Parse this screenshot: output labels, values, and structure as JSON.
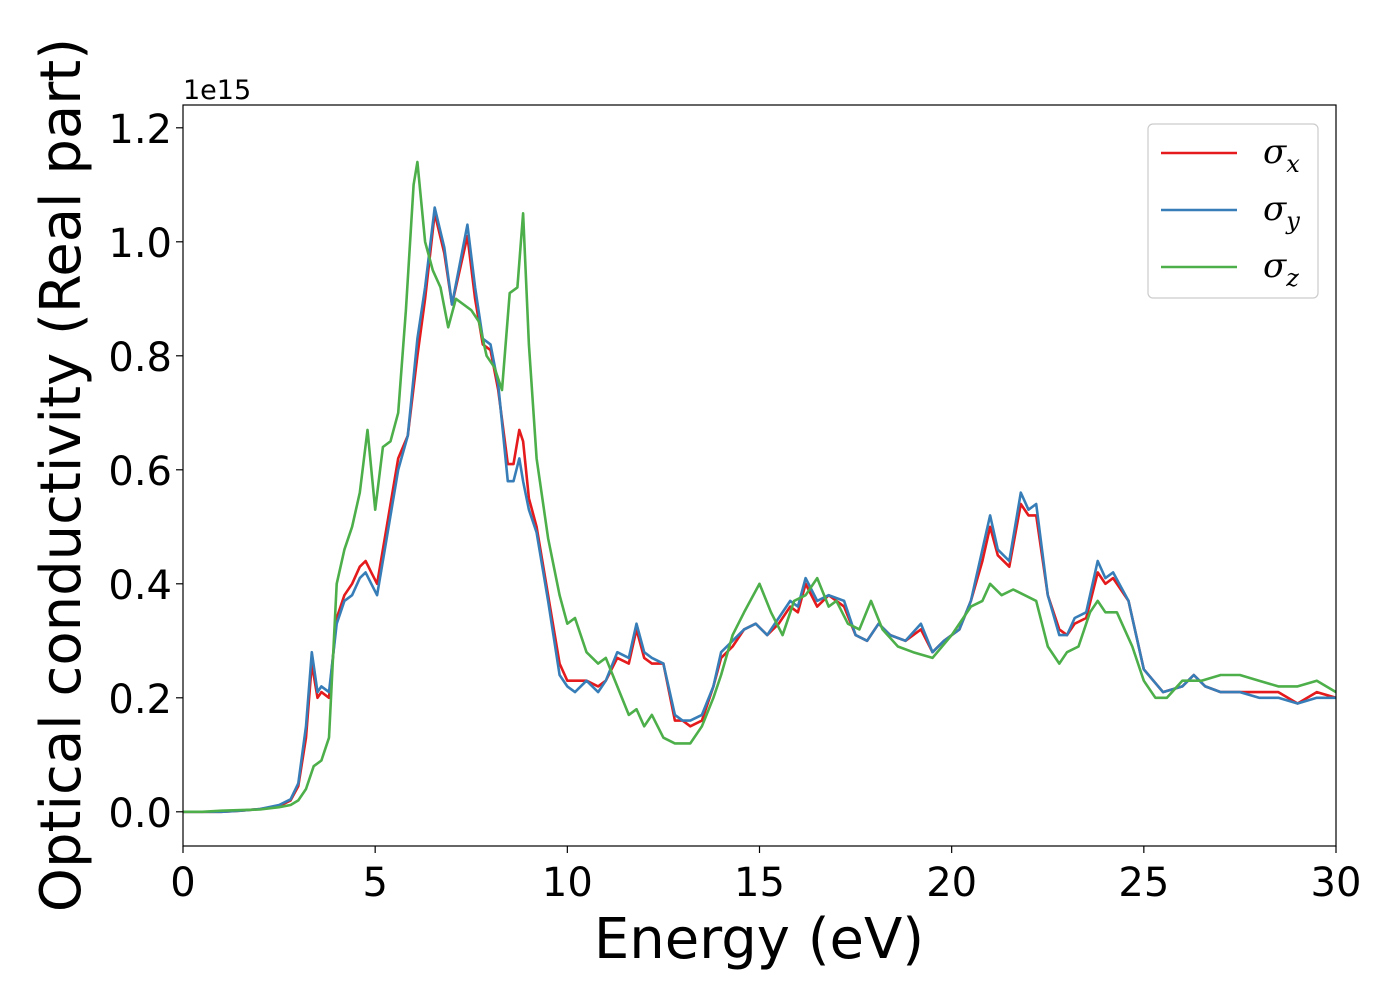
{
  "chart_data": {
    "type": "line",
    "xlabel": "Energy (eV)",
    "ylabel": "Optical conductivity (Real part)",
    "y_offset_label": "1e15",
    "xlim": [
      0,
      30
    ],
    "ylim": [
      -0.06,
      1.24
    ],
    "x_ticks": [
      0,
      5,
      10,
      15,
      20,
      25,
      30
    ],
    "x_tick_labels": [
      "0",
      "5",
      "10",
      "15",
      "20",
      "25",
      "30"
    ],
    "y_ticks": [
      0.0,
      0.2,
      0.4,
      0.6,
      0.8,
      1.0,
      1.2
    ],
    "y_tick_labels": [
      "0.0",
      "0.2",
      "0.4",
      "0.6",
      "0.8",
      "1.0",
      "1.2"
    ],
    "grid": false,
    "legend_position": "top-right",
    "series": [
      {
        "name": "σx",
        "symbol": "σ",
        "subscript": "x",
        "color": "#e41a1c",
        "x": [
          0,
          0.5,
          1,
          1.5,
          2,
          2.5,
          2.8,
          3.0,
          3.2,
          3.35,
          3.5,
          3.6,
          3.8,
          4.0,
          4.2,
          4.4,
          4.6,
          4.75,
          4.9,
          5.05,
          5.3,
          5.6,
          5.85,
          6.1,
          6.3,
          6.55,
          6.8,
          7.0,
          7.2,
          7.4,
          7.6,
          7.8,
          8.0,
          8.2,
          8.45,
          8.6,
          8.75,
          8.85,
          9.0,
          9.2,
          9.5,
          9.8,
          10.0,
          10.2,
          10.5,
          10.8,
          11.0,
          11.3,
          11.6,
          11.8,
          12.0,
          12.2,
          12.5,
          12.8,
          13.0,
          13.2,
          13.5,
          13.8,
          14.0,
          14.3,
          14.6,
          14.9,
          15.2,
          15.5,
          15.8,
          16.0,
          16.2,
          16.5,
          16.8,
          17.2,
          17.5,
          17.8,
          18.1,
          18.4,
          18.8,
          19.2,
          19.5,
          19.8,
          20.2,
          20.5,
          20.8,
          21.0,
          21.2,
          21.5,
          21.8,
          22.0,
          22.2,
          22.5,
          22.8,
          23.0,
          23.2,
          23.5,
          23.8,
          24.0,
          24.2,
          24.6,
          25.0,
          25.5,
          26.0,
          26.3,
          26.6,
          27.0,
          27.5,
          28.0,
          28.5,
          29.0,
          29.5,
          30.0
        ],
        "y": [
          0.0,
          0.0,
          0.0,
          0.002,
          0.005,
          0.01,
          0.02,
          0.045,
          0.13,
          0.26,
          0.2,
          0.21,
          0.2,
          0.34,
          0.38,
          0.4,
          0.43,
          0.44,
          0.42,
          0.4,
          0.5,
          0.62,
          0.66,
          0.8,
          0.9,
          1.05,
          0.98,
          0.89,
          0.95,
          1.01,
          0.9,
          0.82,
          0.81,
          0.74,
          0.61,
          0.61,
          0.67,
          0.65,
          0.55,
          0.5,
          0.38,
          0.26,
          0.23,
          0.23,
          0.23,
          0.22,
          0.23,
          0.27,
          0.26,
          0.32,
          0.27,
          0.26,
          0.26,
          0.16,
          0.16,
          0.15,
          0.16,
          0.22,
          0.27,
          0.29,
          0.32,
          0.33,
          0.31,
          0.33,
          0.36,
          0.35,
          0.4,
          0.36,
          0.38,
          0.36,
          0.31,
          0.3,
          0.33,
          0.31,
          0.3,
          0.32,
          0.28,
          0.3,
          0.32,
          0.37,
          0.44,
          0.5,
          0.45,
          0.43,
          0.54,
          0.52,
          0.52,
          0.38,
          0.32,
          0.31,
          0.33,
          0.34,
          0.42,
          0.4,
          0.41,
          0.37,
          0.25,
          0.21,
          0.22,
          0.24,
          0.22,
          0.21,
          0.21,
          0.21,
          0.21,
          0.19,
          0.21,
          0.2
        ]
      },
      {
        "name": "σy",
        "symbol": "σ",
        "subscript": "y",
        "color": "#377eb8",
        "x": [
          0,
          0.5,
          1,
          1.5,
          2,
          2.5,
          2.8,
          3.0,
          3.2,
          3.35,
          3.5,
          3.6,
          3.8,
          4.0,
          4.2,
          4.4,
          4.6,
          4.75,
          4.9,
          5.05,
          5.3,
          5.6,
          5.85,
          6.1,
          6.3,
          6.55,
          6.8,
          7.0,
          7.2,
          7.4,
          7.6,
          7.8,
          8.0,
          8.2,
          8.45,
          8.6,
          8.75,
          8.85,
          9.0,
          9.2,
          9.5,
          9.8,
          10.0,
          10.2,
          10.5,
          10.8,
          11.0,
          11.3,
          11.6,
          11.8,
          12.0,
          12.2,
          12.5,
          12.8,
          13.0,
          13.2,
          13.5,
          13.8,
          14.0,
          14.3,
          14.6,
          14.9,
          15.2,
          15.5,
          15.8,
          16.0,
          16.2,
          16.5,
          16.8,
          17.2,
          17.5,
          17.8,
          18.1,
          18.4,
          18.8,
          19.2,
          19.5,
          19.8,
          20.2,
          20.5,
          20.8,
          21.0,
          21.2,
          21.5,
          21.8,
          22.0,
          22.2,
          22.5,
          22.8,
          23.0,
          23.2,
          23.5,
          23.8,
          24.0,
          24.2,
          24.6,
          25.0,
          25.5,
          26.0,
          26.3,
          26.6,
          27.0,
          27.5,
          28.0,
          28.5,
          29.0,
          29.5,
          30.0
        ],
        "y": [
          0.0,
          0.0,
          0.0,
          0.002,
          0.005,
          0.012,
          0.022,
          0.05,
          0.15,
          0.28,
          0.21,
          0.22,
          0.21,
          0.33,
          0.37,
          0.38,
          0.41,
          0.42,
          0.4,
          0.38,
          0.48,
          0.6,
          0.66,
          0.83,
          0.92,
          1.06,
          0.99,
          0.89,
          0.96,
          1.03,
          0.92,
          0.83,
          0.82,
          0.75,
          0.58,
          0.58,
          0.62,
          0.58,
          0.53,
          0.49,
          0.37,
          0.24,
          0.22,
          0.21,
          0.23,
          0.21,
          0.23,
          0.28,
          0.27,
          0.33,
          0.28,
          0.27,
          0.26,
          0.17,
          0.16,
          0.16,
          0.17,
          0.22,
          0.28,
          0.3,
          0.32,
          0.33,
          0.31,
          0.34,
          0.37,
          0.36,
          0.41,
          0.37,
          0.38,
          0.37,
          0.31,
          0.3,
          0.33,
          0.31,
          0.3,
          0.33,
          0.28,
          0.3,
          0.32,
          0.37,
          0.46,
          0.52,
          0.46,
          0.44,
          0.56,
          0.53,
          0.54,
          0.38,
          0.31,
          0.31,
          0.34,
          0.35,
          0.44,
          0.41,
          0.42,
          0.37,
          0.25,
          0.21,
          0.22,
          0.24,
          0.22,
          0.21,
          0.21,
          0.2,
          0.2,
          0.19,
          0.2,
          0.2
        ]
      },
      {
        "name": "σz",
        "symbol": "σ",
        "subscript": "z",
        "color": "#4daf4a",
        "x": [
          0,
          0.5,
          1,
          1.5,
          2,
          2.5,
          2.8,
          3.0,
          3.2,
          3.4,
          3.6,
          3.8,
          4.0,
          4.2,
          4.4,
          4.6,
          4.8,
          5.0,
          5.2,
          5.4,
          5.6,
          5.8,
          6.0,
          6.1,
          6.3,
          6.5,
          6.7,
          6.9,
          7.1,
          7.3,
          7.5,
          7.7,
          7.9,
          8.1,
          8.3,
          8.5,
          8.7,
          8.85,
          9.0,
          9.2,
          9.5,
          9.8,
          10.0,
          10.2,
          10.5,
          10.8,
          11.0,
          11.3,
          11.6,
          11.8,
          12.0,
          12.2,
          12.5,
          12.8,
          13.0,
          13.2,
          13.5,
          13.8,
          14.0,
          14.3,
          14.6,
          15.0,
          15.3,
          15.6,
          15.9,
          16.2,
          16.5,
          16.8,
          17.0,
          17.3,
          17.6,
          17.9,
          18.2,
          18.6,
          19.0,
          19.5,
          20.0,
          20.5,
          20.8,
          21.0,
          21.3,
          21.6,
          21.9,
          22.2,
          22.5,
          22.8,
          23.0,
          23.3,
          23.6,
          23.8,
          24.0,
          24.3,
          24.7,
          25.0,
          25.3,
          25.6,
          26.0,
          26.5,
          27.0,
          27.5,
          28.0,
          28.5,
          29.0,
          29.5,
          30.0
        ],
        "y": [
          0.0,
          0.0,
          0.002,
          0.003,
          0.004,
          0.008,
          0.012,
          0.02,
          0.04,
          0.08,
          0.09,
          0.13,
          0.4,
          0.46,
          0.5,
          0.56,
          0.67,
          0.53,
          0.64,
          0.65,
          0.7,
          0.88,
          1.1,
          1.14,
          1.0,
          0.95,
          0.92,
          0.85,
          0.9,
          0.89,
          0.88,
          0.86,
          0.8,
          0.78,
          0.74,
          0.91,
          0.92,
          1.05,
          0.82,
          0.62,
          0.48,
          0.38,
          0.33,
          0.34,
          0.28,
          0.26,
          0.27,
          0.22,
          0.17,
          0.18,
          0.15,
          0.17,
          0.13,
          0.12,
          0.12,
          0.12,
          0.15,
          0.2,
          0.24,
          0.31,
          0.35,
          0.4,
          0.35,
          0.31,
          0.37,
          0.38,
          0.41,
          0.36,
          0.37,
          0.33,
          0.32,
          0.37,
          0.32,
          0.29,
          0.28,
          0.27,
          0.31,
          0.36,
          0.37,
          0.4,
          0.38,
          0.39,
          0.38,
          0.37,
          0.29,
          0.26,
          0.28,
          0.29,
          0.35,
          0.37,
          0.35,
          0.35,
          0.29,
          0.23,
          0.2,
          0.2,
          0.23,
          0.23,
          0.24,
          0.24,
          0.23,
          0.22,
          0.22,
          0.23,
          0.21
        ]
      }
    ]
  }
}
